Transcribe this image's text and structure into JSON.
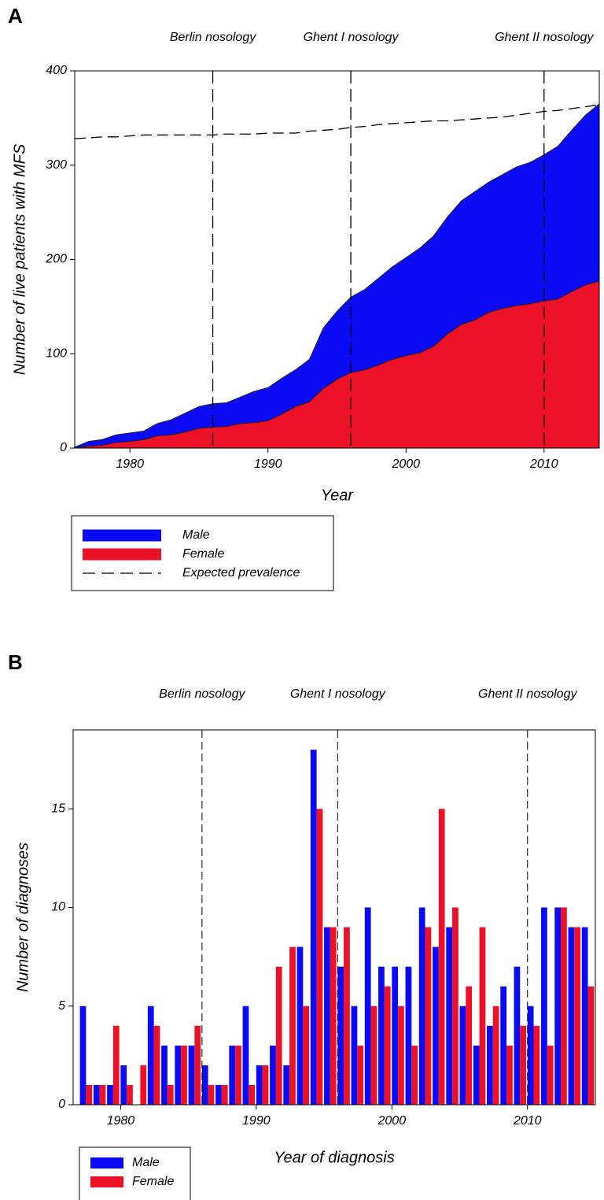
{
  "chart_data": [
    {
      "type": "area",
      "panel": "A",
      "x_label": "Year",
      "y_label": "Number of live patients with MFS",
      "x": [
        1976,
        1977,
        1978,
        1979,
        1980,
        1981,
        1982,
        1983,
        1984,
        1985,
        1986,
        1987,
        1988,
        1989,
        1990,
        1991,
        1992,
        1993,
        1994,
        1995,
        1996,
        1997,
        1998,
        1999,
        2000,
        2001,
        2002,
        2003,
        2004,
        2005,
        2006,
        2007,
        2008,
        2009,
        2010,
        2011,
        2012,
        2013,
        2014
      ],
      "series": [
        {
          "name": "Male",
          "color": "#0a0af5",
          "stacked": true,
          "values": [
            1,
            5,
            6,
            8,
            9,
            9,
            13,
            16,
            20,
            23,
            25,
            25,
            28,
            33,
            35,
            38,
            39,
            45,
            64,
            72,
            80,
            85,
            92,
            98,
            104,
            111,
            117,
            124,
            131,
            136,
            138,
            142,
            147,
            150,
            155,
            162,
            171,
            180,
            188
          ]
        },
        {
          "name": "Female",
          "color": "#ec1127",
          "stacked": true,
          "values": [
            0,
            2,
            3,
            6,
            7,
            9,
            13,
            14,
            17,
            21,
            22,
            23,
            26,
            27,
            29,
            36,
            44,
            49,
            63,
            73,
            80,
            83,
            88,
            94,
            98,
            101,
            108,
            121,
            131,
            136,
            144,
            148,
            151,
            153,
            156,
            158,
            166,
            173,
            177
          ]
        },
        {
          "name": "Expected prevalence",
          "color": "#000000",
          "dashed": true,
          "values": [
            328,
            329,
            330,
            330,
            331,
            332,
            332,
            332,
            332,
            332,
            332,
            333,
            333,
            333,
            334,
            334,
            334,
            336,
            337,
            338,
            340,
            341,
            343,
            344,
            345,
            346,
            347,
            347,
            348,
            349,
            350,
            351,
            353,
            355,
            357,
            358,
            360,
            362,
            364
          ]
        }
      ],
      "vlines": [
        {
          "x": 1986,
          "label": "Berlin nosology"
        },
        {
          "x": 1996,
          "label": "Ghent I nosology"
        },
        {
          "x": 2010,
          "label": "Ghent II nosology"
        }
      ],
      "xlim": [
        1976,
        2014
      ],
      "xticks": [
        1980,
        1990,
        2000,
        2010
      ],
      "ylim": [
        0,
        400
      ],
      "yticks": [
        0,
        100,
        200,
        300,
        400
      ]
    },
    {
      "type": "bar",
      "panel": "B",
      "x_label": "Year of diagnosis",
      "y_label": "Number of diagnoses",
      "x": [
        1977,
        1978,
        1979,
        1980,
        1981,
        1982,
        1983,
        1984,
        1985,
        1986,
        1987,
        1988,
        1989,
        1990,
        1991,
        1992,
        1993,
        1994,
        1995,
        1996,
        1997,
        1998,
        1999,
        2000,
        2001,
        2002,
        2003,
        2004,
        2005,
        2006,
        2007,
        2008,
        2009,
        2010,
        2011,
        2012,
        2013,
        2014
      ],
      "series": [
        {
          "name": "Male",
          "color": "#0a0af5",
          "values": [
            5,
            1,
            1,
            2,
            0,
            5,
            3,
            3,
            3,
            2,
            1,
            3,
            5,
            2,
            3,
            2,
            8,
            18,
            9,
            7,
            5,
            10,
            7,
            7,
            7,
            10,
            8,
            9,
            5,
            3,
            4,
            6,
            7,
            5,
            10,
            10,
            9,
            9
          ]
        },
        {
          "name": "Female",
          "color": "#ec1127",
          "values": [
            1,
            1,
            4,
            1,
            2,
            4,
            1,
            3,
            4,
            1,
            1,
            3,
            1,
            2,
            7,
            8,
            5,
            15,
            9,
            9,
            3,
            5,
            6,
            5,
            3,
            9,
            15,
            10,
            6,
            9,
            5,
            3,
            4,
            4,
            3,
            10,
            9,
            6
          ]
        }
      ],
      "vlines": [
        {
          "x": 1986,
          "label": "Berlin nosology"
        },
        {
          "x": 1996,
          "label": "Ghent I nosology"
        },
        {
          "x": 2010,
          "label": "Ghent II nosology"
        }
      ],
      "xlim": [
        1976.5,
        2015
      ],
      "xticks": [
        1980,
        1990,
        2000,
        2010
      ],
      "ylim": [
        0,
        19
      ],
      "yticks": [
        0,
        5,
        10,
        15
      ]
    }
  ]
}
